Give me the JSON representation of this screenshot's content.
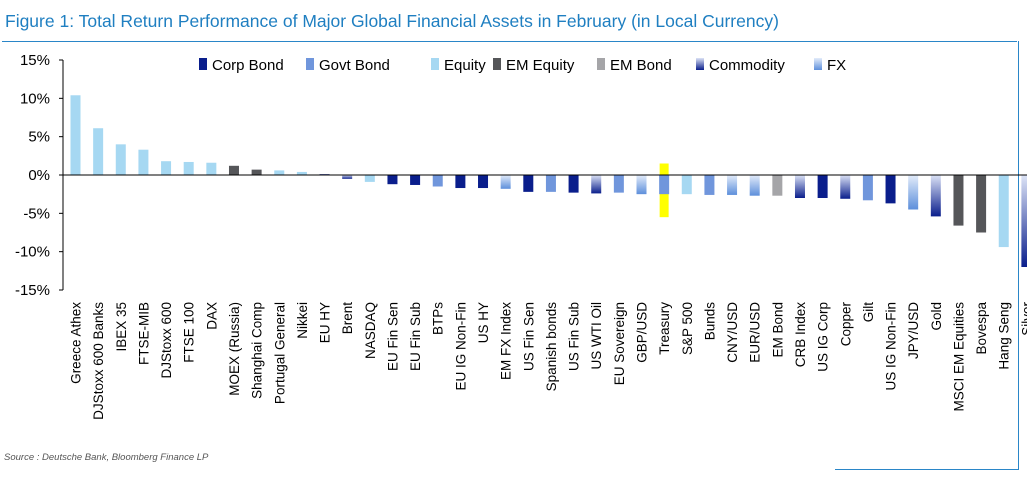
{
  "title": "Figure 1: Total Return Performance of Major Global Financial Assets in February (in Local Currency)",
  "source": "Source : Deutsche Bank, Bloomberg Finance LP",
  "colors": {
    "title": "#1f7fc1",
    "border": "#2a86c8",
    "highlight": "#ffff00"
  },
  "chart_data": {
    "type": "bar",
    "ylim": [
      -15,
      15
    ],
    "yticks": [
      15,
      10,
      5,
      0,
      -5,
      -10,
      -15
    ],
    "ytick_labels": [
      "15%",
      "10%",
      "5%",
      "0%",
      "-5%",
      "-10%",
      "-15%"
    ],
    "grid": false,
    "legend_position": "top",
    "highlight_category": "Treasury",
    "legend": [
      {
        "key": "corp_bond",
        "label": "Corp Bond",
        "color": "#0a1e8c"
      },
      {
        "key": "govt_bond",
        "label": "Govt Bond",
        "color": "#7096dc"
      },
      {
        "key": "equity",
        "label": "Equity",
        "color": "#a6d8f2"
      },
      {
        "key": "em_equity",
        "label": "EM Equity",
        "color": "#555659"
      },
      {
        "key": "em_bond",
        "label": "EM Bond",
        "color": "#a5a5a8"
      },
      {
        "key": "commodity",
        "label": "Commodity",
        "color": "#14237e",
        "gradient": [
          "#0a1e8c",
          "#dce3f6"
        ]
      },
      {
        "key": "fx",
        "label": "FX",
        "color": "#7aa8e0",
        "gradient": [
          "#5d8fdb",
          "#e3ecfa"
        ]
      }
    ],
    "categories": [
      "Greece Athex",
      "DJStoxx 600 Banks",
      "IBEX 35",
      "FTSE-MIB",
      "DJStoxx 600",
      "FTSE 100",
      "DAX",
      "MOEX (Russia)",
      "Shanghai Comp",
      "Portugal General",
      "Nikkei",
      "EU HY",
      "Brent",
      "NASDAQ",
      "EU Fin Sen",
      "EU Fin Sub",
      "BTPs",
      "EU IG Non-Fin",
      "US HY",
      "EM FX Index",
      "US Fin Sen",
      "Spanish bonds",
      "US Fin Sub",
      "US WTI Oil",
      "EU Sovereign",
      "GBP/USD",
      "Treasury",
      "S&P 500",
      "Bunds",
      "CNY/USD",
      "EUR/USD",
      "EM Bond",
      "CRB Index",
      "US IG Corp",
      "Copper",
      "Gilt",
      "US IG Non-Fin",
      "JPY/USD",
      "Gold",
      "MSCI EM Equities",
      "Bovespa",
      "Hang Seng",
      "Silver"
    ],
    "values": [
      10.4,
      6.1,
      4.0,
      3.3,
      1.8,
      1.7,
      1.6,
      1.2,
      0.7,
      0.6,
      0.4,
      0.0,
      -0.5,
      -0.9,
      -1.2,
      -1.3,
      -1.5,
      -1.7,
      -1.7,
      -1.8,
      -2.2,
      -2.2,
      -2.3,
      -2.4,
      -2.3,
      -2.5,
      -2.5,
      -2.5,
      -2.6,
      -2.6,
      -2.7,
      -2.7,
      -3.0,
      -3.0,
      -3.1,
      -3.3,
      -3.7,
      -4.5,
      -5.4,
      -6.6,
      -7.5,
      -9.4,
      -12.0
    ],
    "types": [
      "equity",
      "equity",
      "equity",
      "equity",
      "equity",
      "equity",
      "equity",
      "em_equity",
      "em_equity",
      "equity",
      "equity",
      "corp_bond",
      "commodity",
      "equity",
      "corp_bond",
      "corp_bond",
      "govt_bond",
      "corp_bond",
      "corp_bond",
      "fx",
      "corp_bond",
      "govt_bond",
      "corp_bond",
      "commodity",
      "govt_bond",
      "fx",
      "govt_bond",
      "equity",
      "govt_bond",
      "fx",
      "fx",
      "em_bond",
      "commodity",
      "corp_bond",
      "commodity",
      "govt_bond",
      "corp_bond",
      "fx",
      "commodity",
      "em_equity",
      "em_equity",
      "equity",
      "commodity"
    ]
  }
}
